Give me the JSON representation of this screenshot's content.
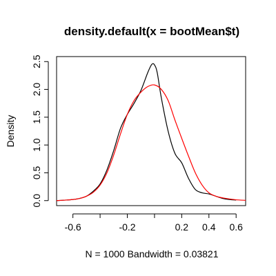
{
  "chart_data": {
    "type": "line",
    "title": "density.default(x = bootMean$t)",
    "xlabel": "N = 1000   Bandwidth = 0.03821",
    "ylabel": "Density",
    "xlim": [
      -0.72,
      0.67
    ],
    "ylim": [
      0,
      2.5
    ],
    "x_ticks": [
      -0.6,
      -0.4,
      -0.2,
      0,
      0.2,
      0.4,
      0.6
    ],
    "x_tick_labels": [
      "-0.6",
      "",
      "-0.2",
      "",
      "0.2",
      "0.4",
      "0.6"
    ],
    "y_ticks": [
      0.0,
      0.5,
      1.0,
      1.5,
      2.0,
      2.5
    ],
    "y_tick_labels": [
      "0.0",
      "0.5",
      "1.0",
      "1.5",
      "2.0",
      "2.5"
    ],
    "grid": false,
    "legend": "none",
    "series": [
      {
        "color": "#000000",
        "x": [
          -0.72,
          -0.65,
          -0.6,
          -0.55,
          -0.5,
          -0.45,
          -0.4,
          -0.35,
          -0.3,
          -0.25,
          -0.2,
          -0.15,
          -0.1,
          -0.05,
          -0.02,
          0.0,
          0.02,
          0.05,
          0.1,
          0.15,
          0.2,
          0.25,
          0.3,
          0.35,
          0.4,
          0.45,
          0.5,
          0.55,
          0.6
        ],
        "y": [
          0.0,
          0.01,
          0.02,
          0.04,
          0.08,
          0.17,
          0.3,
          0.55,
          0.9,
          1.3,
          1.55,
          1.75,
          1.98,
          2.3,
          2.45,
          2.44,
          2.3,
          1.85,
          1.25,
          0.85,
          0.68,
          0.4,
          0.2,
          0.14,
          0.12,
          0.08,
          0.04,
          0.02,
          0.01
        ]
      },
      {
        "color": "#ff0000",
        "x": [
          -0.72,
          -0.65,
          -0.6,
          -0.55,
          -0.5,
          -0.45,
          -0.4,
          -0.35,
          -0.3,
          -0.25,
          -0.2,
          -0.15,
          -0.1,
          -0.05,
          0.0,
          0.05,
          0.1,
          0.15,
          0.2,
          0.25,
          0.3,
          0.35,
          0.4,
          0.45,
          0.5,
          0.55,
          0.6,
          0.67
        ],
        "y": [
          0.0,
          0.01,
          0.02,
          0.04,
          0.08,
          0.15,
          0.28,
          0.5,
          0.82,
          1.2,
          1.55,
          1.8,
          1.95,
          2.05,
          2.08,
          2.0,
          1.8,
          1.45,
          1.12,
          0.8,
          0.5,
          0.28,
          0.14,
          0.08,
          0.05,
          0.03,
          0.015,
          0.005
        ]
      }
    ]
  }
}
